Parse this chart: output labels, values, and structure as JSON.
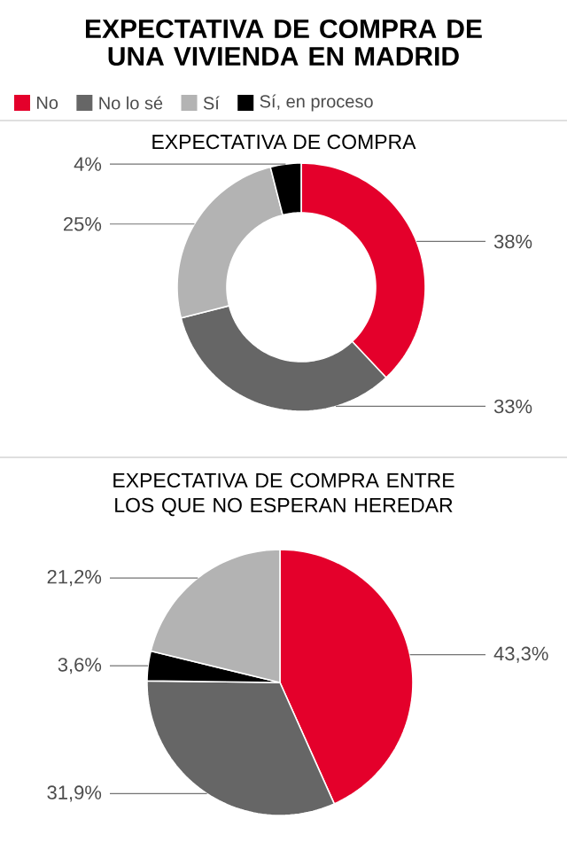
{
  "chart_data": [
    {
      "type": "donut",
      "title": "EXPECTATIVA DE COMPRA DE UNA VIVIENDA EN MADRID",
      "subtitle": "EXPECTATIVA DE COMPRA",
      "legend": "top",
      "categories": [
        "No",
        "No lo sé",
        "Sí",
        "Sí, en proceso"
      ],
      "values": [
        38,
        33,
        25,
        4
      ],
      "value_labels": [
        "38%",
        "33%",
        "25%",
        "4%"
      ],
      "colors": [
        "#e4002b",
        "#666666",
        "#b3b3b3",
        "#000000"
      ]
    },
    {
      "type": "pie",
      "title": "EXPECTATIVA DE COMPRA ENTRE LOS QUE NO ESPERAN HEREDAR",
      "categories": [
        null,
        null,
        null,
        null
      ],
      "values": [
        43.3,
        31.9,
        3.6,
        21.2
      ],
      "value_labels": [
        "43,3%",
        "31,9%",
        "3,6%",
        "21,2%"
      ],
      "colors": [
        "#e4002b",
        "#666666",
        "#000000",
        "#b3b3b3"
      ]
    }
  ]
}
